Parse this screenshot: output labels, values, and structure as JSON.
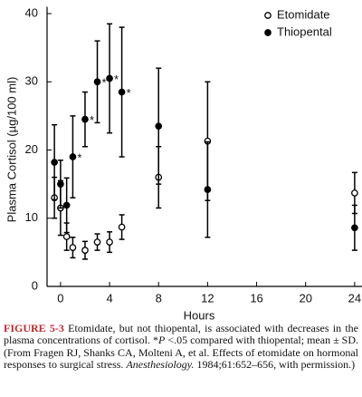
{
  "chart_data": {
    "type": "errorbar",
    "xlabel": "Hours",
    "ylabel": "Plasma Cortisol (µg/100 ml)",
    "x": [
      -0.5,
      0,
      0.5,
      1,
      2,
      3,
      4,
      5,
      8,
      12,
      24
    ],
    "series": [
      {
        "name": "Etomidate",
        "color": "#000000",
        "marker": "open",
        "values": [
          13,
          11.5,
          7.3,
          5.7,
          5.3,
          6.5,
          6.5,
          8.7,
          16,
          21.3,
          13.7
        ],
        "errors": [
          3,
          4,
          2,
          1.5,
          1.3,
          1.2,
          1.5,
          1.8,
          4.5,
          8.7,
          3
        ]
      },
      {
        "name": "Thiopental",
        "color": "#000000",
        "marker": "filled",
        "values": [
          18.2,
          15,
          11.9,
          19,
          24.5,
          30,
          30.5,
          28.5,
          23.5,
          14.2,
          8.6
        ],
        "errors": [
          5.5,
          3.5,
          4,
          6,
          4,
          6,
          8,
          9.5,
          8.5,
          7,
          3.3
        ]
      }
    ],
    "annotations": [
      {
        "text": "*",
        "x": 1,
        "y": 19
      },
      {
        "text": "*",
        "x": 2,
        "y": 24.5
      },
      {
        "text": "*",
        "x": 3,
        "y": 30
      },
      {
        "text": "*",
        "x": 4,
        "y": 30.5
      },
      {
        "text": "*",
        "x": 5,
        "y": 28.5
      }
    ],
    "xlim": [
      -1.1,
      24.6
    ],
    "xticks": [
      0,
      4,
      8,
      12,
      16,
      20,
      24
    ],
    "ylim": [
      0,
      41
    ],
    "yticks": [
      0,
      10,
      20,
      30,
      40
    ],
    "legend": "upper right",
    "grid": false
  },
  "caption": {
    "label": "FIGURE 5-3",
    "runs": [
      {
        "text": " Etomidate, but not thiopental, is associated with decreases in the plasma concentrations of cortisol. *",
        "italic": false
      },
      {
        "text": "P",
        "italic": true
      },
      {
        "text": " <.05 compared with thiopental; mean ± SD. (From Fragen RJ, Shanks CA, Molteni A, et al. Effects of etomidate on hormonal responses to surgical stress. ",
        "italic": false
      },
      {
        "text": "Anesthesiology.",
        "italic": true
      },
      {
        "text": " 1984;61:652–656, with permission.)",
        "italic": false
      }
    ]
  }
}
